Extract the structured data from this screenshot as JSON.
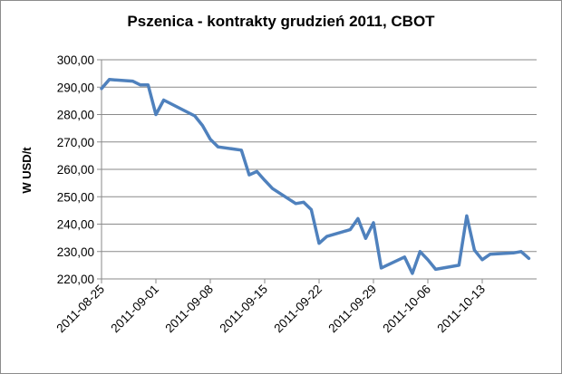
{
  "chart_data": {
    "type": "line",
    "title": "Pszenica - kontrakty grudzień 2011, CBOT",
    "ylabel": "W USD/t",
    "xlabel": "",
    "ylim": [
      220,
      300
    ],
    "yticks": [
      "220,00",
      "230,00",
      "240,00",
      "250,00",
      "260,00",
      "270,00",
      "280,00",
      "290,00",
      "300,00"
    ],
    "xlim": [
      "2011-08-25",
      "2011-10-20"
    ],
    "xticks": [
      "2011-08-25",
      "2011-09-01",
      "2011-09-08",
      "2011-09-15",
      "2011-09-22",
      "2011-09-29",
      "2011-10-06",
      "2011-10-13"
    ],
    "grid": true,
    "legend": "none",
    "line_color": "#4f81bd",
    "series": [
      {
        "x": [
          "2011-08-25",
          "2011-08-26",
          "2011-08-29",
          "2011-08-30",
          "2011-08-31",
          "2011-09-01",
          "2011-09-02",
          "2011-09-06",
          "2011-09-07",
          "2011-09-08",
          "2011-09-09",
          "2011-09-12",
          "2011-09-13",
          "2011-09-14",
          "2011-09-15",
          "2011-09-16",
          "2011-09-19",
          "2011-09-20",
          "2011-09-21",
          "2011-09-22",
          "2011-09-23",
          "2011-09-26",
          "2011-09-27",
          "2011-09-28",
          "2011-09-29",
          "2011-09-30",
          "2011-10-03",
          "2011-10-04",
          "2011-10-05",
          "2011-10-06",
          "2011-10-07",
          "2011-10-10",
          "2011-10-11",
          "2011-10-12",
          "2011-10-13",
          "2011-10-14",
          "2011-10-17",
          "2011-10-18",
          "2011-10-19"
        ],
        "values": [
          289.5,
          292.8,
          292.2,
          290.8,
          290.8,
          280.0,
          285.3,
          279.5,
          276.0,
          271.0,
          268.2,
          267.0,
          258.0,
          259.2,
          256.0,
          253.0,
          247.5,
          248.0,
          245.3,
          233.0,
          235.5,
          238.0,
          242.0,
          234.8,
          240.5,
          224.0,
          228.0,
          222.0,
          230.0,
          227.0,
          223.5,
          225.0,
          243.0,
          230.5,
          227.0,
          229.0,
          229.5,
          230.0,
          227.5
        ]
      }
    ]
  }
}
